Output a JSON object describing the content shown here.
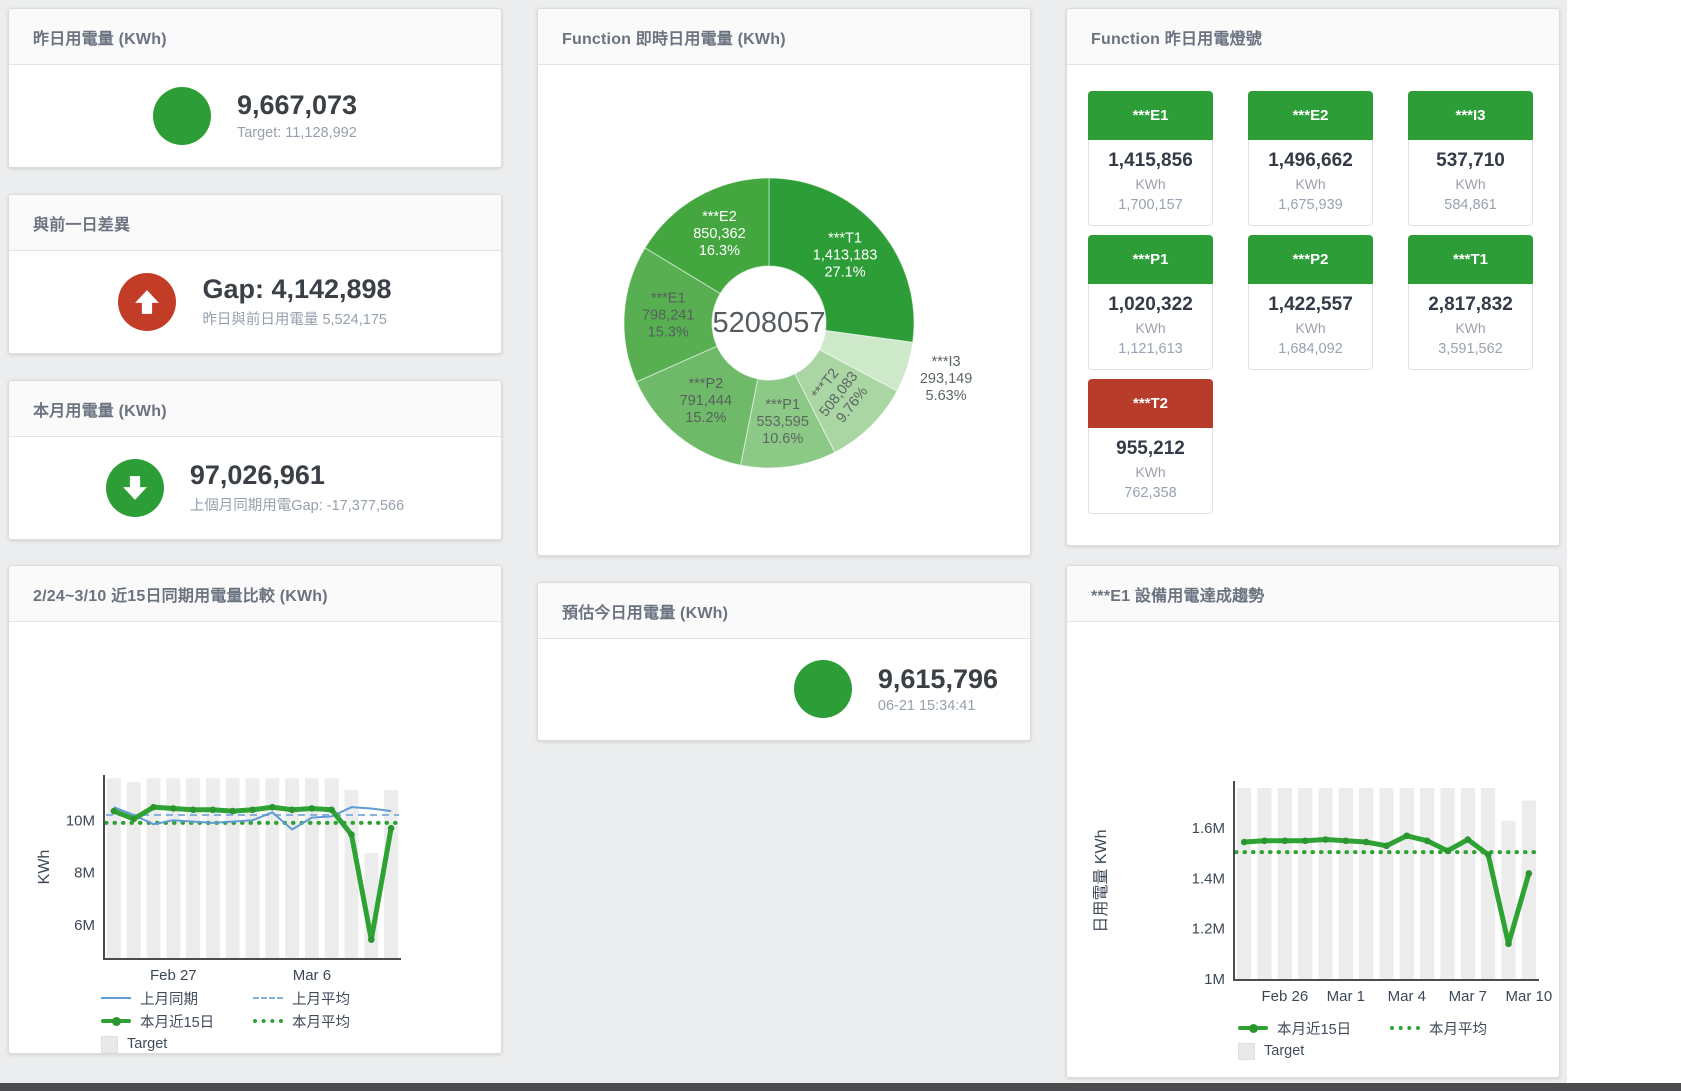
{
  "panels": {
    "yesterday": {
      "title": "昨日用電量 (KWh)",
      "value": "9,667,073",
      "subtitle": "Target: 11,128,992",
      "status_color": "#2d9e37"
    },
    "gap": {
      "title": "與前一日差異",
      "value": "Gap: 4,142,898",
      "subtitle": "昨日與前日用電量 5,524,175",
      "status_color": "#c23c28"
    },
    "month": {
      "title": "本月用電量 (KWh)",
      "value": "97,026,961",
      "subtitle": "上個月同期用電Gap: -17,377,566",
      "status_color": "#2d9e37"
    },
    "estimate": {
      "title": "預估今日用電量 (KWh)",
      "value": "9,615,796",
      "subtitle": "06-21 15:34:41",
      "status_color": "#2d9e37"
    },
    "donut": {
      "title": "Function 即時日用電量 (KWh)"
    },
    "lamps": {
      "title": "Function 昨日用電燈號",
      "tiles": [
        {
          "label": "***E1",
          "value": "1,415,856",
          "unit": "KWh",
          "target": "1,700,157",
          "status": "green"
        },
        {
          "label": "***E2",
          "value": "1,496,662",
          "unit": "KWh",
          "target": "1,675,939",
          "status": "green"
        },
        {
          "label": "***I3",
          "value": "537,710",
          "unit": "KWh",
          "target": "584,861",
          "status": "green"
        },
        {
          "label": "***P1",
          "value": "1,020,322",
          "unit": "KWh",
          "target": "1,121,613",
          "status": "green"
        },
        {
          "label": "***P2",
          "value": "1,422,557",
          "unit": "KWh",
          "target": "1,684,092",
          "status": "green"
        },
        {
          "label": "***T1",
          "value": "2,817,832",
          "unit": "KWh",
          "target": "3,591,562",
          "status": "green"
        },
        {
          "label": "***T2",
          "value": "955,212",
          "unit": "KWh",
          "target": "762,358",
          "status": "red"
        }
      ]
    },
    "compare": {
      "title": "2/24~3/10 近15日同期用電量比較 (KWh)"
    },
    "trend": {
      "title": "***E1 設備用電達成趨勢"
    }
  },
  "colors": {
    "green": "#2d9e37",
    "red": "#c23c28",
    "chart_green": "#2fa234",
    "chart_blue": "#5f9bd4",
    "chart_blue_light": "#86b3dd",
    "bar_gray": "#ececec",
    "tile_red": "#b73c2a"
  },
  "chart_data": [
    {
      "id": "realtime_donut",
      "type": "pie",
      "title": "Function 即時日用電量 (KWh)",
      "center_total": "5208057",
      "slices": [
        {
          "label": "***T1",
          "value": 1413183,
          "pct": "27.1%",
          "color": "#2d9e37",
          "text_color": "#ffffff"
        },
        {
          "label": "***I3",
          "value": 293149,
          "pct": "5.63%",
          "color": "#cde9c9",
          "text_color": "#5c6663",
          "outside": true
        },
        {
          "label": "***T2",
          "value": 508083,
          "pct": "9.76%",
          "color": "#a9d6a3",
          "text_color": "#5c6663",
          "rotate": -52
        },
        {
          "label": "***P1",
          "value": 553595,
          "pct": "10.6%",
          "color": "#8cc986",
          "text_color": "#5c6663"
        },
        {
          "label": "***P2",
          "value": 791444,
          "pct": "15.2%",
          "color": "#6fba69",
          "text_color": "#55605c"
        },
        {
          "label": "***E1",
          "value": 798241,
          "pct": "15.3%",
          "color": "#58af52",
          "text_color": "#55605c"
        },
        {
          "label": "***E2",
          "value": 850362,
          "pct": "16.3%",
          "color": "#43a63e",
          "text_color": "#ffffff"
        }
      ]
    },
    {
      "id": "compare15",
      "type": "line",
      "title": "2/24~3/10 近15日同期用電量比較 (KWh)",
      "ylabel": "KWh",
      "unit_scale": "M",
      "ylim": [
        4.75,
        11.65
      ],
      "yticks": [
        {
          "v": 6,
          "label": "6M"
        },
        {
          "v": 8,
          "label": "8M"
        },
        {
          "v": 10,
          "label": "10M"
        }
      ],
      "xticks": [
        {
          "i": 3,
          "label": "Feb 27"
        },
        {
          "i": 10,
          "label": "Mar 6"
        }
      ],
      "target_bars": [
        11.6,
        11.45,
        11.6,
        11.6,
        11.6,
        11.6,
        11.6,
        11.6,
        11.6,
        11.6,
        11.6,
        11.6,
        11.15,
        8.75,
        11.15
      ],
      "series": [
        {
          "name": "上月同期",
          "style": "line-blue",
          "values": [
            10.5,
            10.2,
            9.85,
            10.0,
            9.95,
            9.9,
            9.95,
            10.0,
            10.3,
            9.65,
            10.1,
            10.15,
            10.5,
            10.45,
            10.35
          ]
        },
        {
          "name": "上月平均",
          "style": "dash-blue",
          "avg": 10.2
        },
        {
          "name": "本月近15日",
          "style": "line-green",
          "values": [
            10.35,
            10.05,
            10.5,
            10.45,
            10.4,
            10.4,
            10.35,
            10.4,
            10.5,
            10.4,
            10.45,
            10.4,
            9.45,
            5.45,
            9.7
          ]
        },
        {
          "name": "本月平均",
          "style": "dot-green",
          "avg": 9.9
        },
        {
          "name": "Target",
          "style": "box"
        }
      ]
    },
    {
      "id": "e1_trend",
      "type": "line",
      "title": "***E1 設備用電達成趨勢",
      "ylabel": "日用電量 KWh",
      "unit_scale": "M",
      "ylim": [
        1.0,
        1.78
      ],
      "yticks": [
        {
          "v": 1,
          "label": "1M"
        },
        {
          "v": 1.2,
          "label": "1.2M"
        },
        {
          "v": 1.4,
          "label": "1.4M"
        },
        {
          "v": 1.6,
          "label": "1.6M"
        }
      ],
      "xticks": [
        {
          "i": 2,
          "label": "Feb 26"
        },
        {
          "i": 5,
          "label": "Mar 1"
        },
        {
          "i": 8,
          "label": "Mar 4"
        },
        {
          "i": 11,
          "label": "Mar 7"
        },
        {
          "i": 14,
          "label": "Mar 10"
        }
      ],
      "target_bars": [
        1.76,
        1.76,
        1.76,
        1.76,
        1.76,
        1.76,
        1.76,
        1.76,
        1.76,
        1.76,
        1.76,
        1.76,
        1.76,
        1.63,
        1.71
      ],
      "series": [
        {
          "name": "本月近15日",
          "style": "line-green",
          "values": [
            1.545,
            1.55,
            1.55,
            1.55,
            1.555,
            1.55,
            1.545,
            1.53,
            1.57,
            1.55,
            1.51,
            1.555,
            1.495,
            1.14,
            1.42
          ]
        },
        {
          "name": "本月平均",
          "style": "dot-green",
          "avg": 1.505
        },
        {
          "name": "Target",
          "style": "box"
        }
      ]
    }
  ]
}
